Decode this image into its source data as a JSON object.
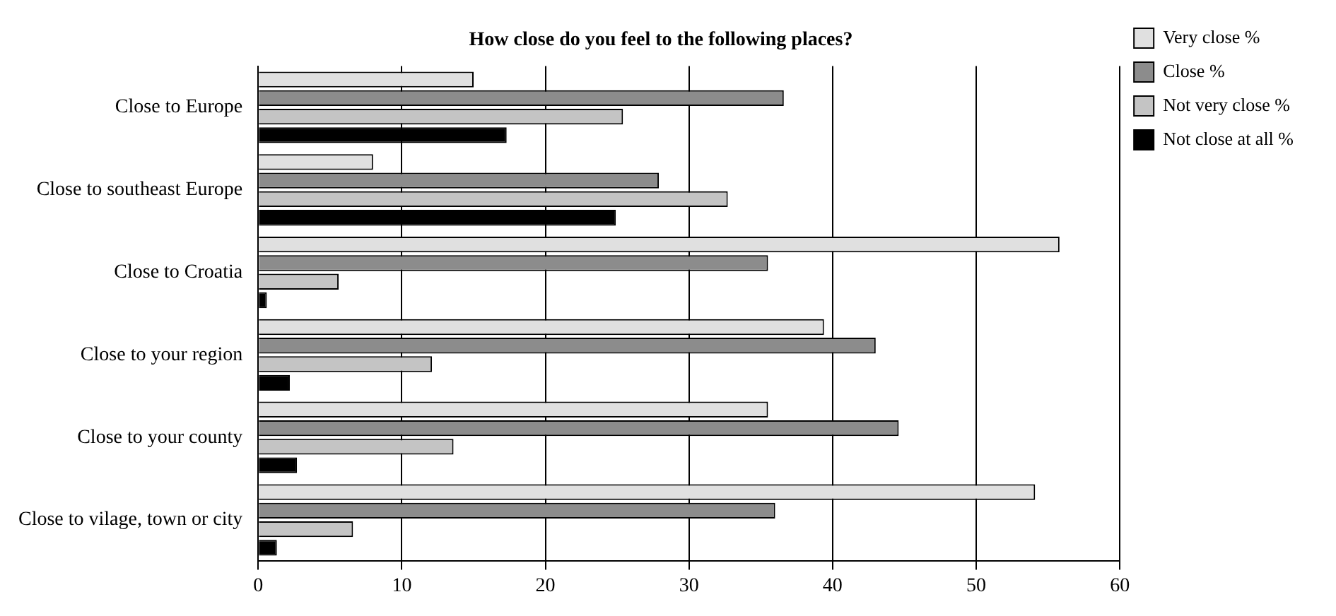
{
  "chart_data": {
    "type": "bar",
    "orientation": "horizontal",
    "title": "How close do you feel to the following places?",
    "categories": [
      "Close to Europe",
      "Close to southeast Europe",
      "Close to Croatia",
      "Close to your region",
      "Close to your county",
      "Close to vilage, town or city"
    ],
    "series": [
      {
        "name": "Very close %",
        "color": "#e0e0e0",
        "values": [
          15,
          8,
          55.8,
          39.4,
          35.5,
          54.1
        ]
      },
      {
        "name": "Close %",
        "color": "#8c8c8c",
        "values": [
          36.6,
          27.9,
          35.5,
          43,
          44.6,
          36
        ]
      },
      {
        "name": "Not very close %",
        "color": "#c4c4c4",
        "values": [
          25.4,
          32.7,
          5.6,
          12.1,
          13.6,
          6.6
        ]
      },
      {
        "name": "Not close at all %",
        "color": "#000000",
        "values": [
          17.3,
          24.9,
          0.6,
          2.2,
          2.7,
          1.3
        ]
      }
    ],
    "xlim": [
      0,
      60
    ],
    "xticks": [
      0,
      10,
      20,
      30,
      40,
      50,
      60
    ],
    "grid": "x",
    "legend": "top right"
  }
}
